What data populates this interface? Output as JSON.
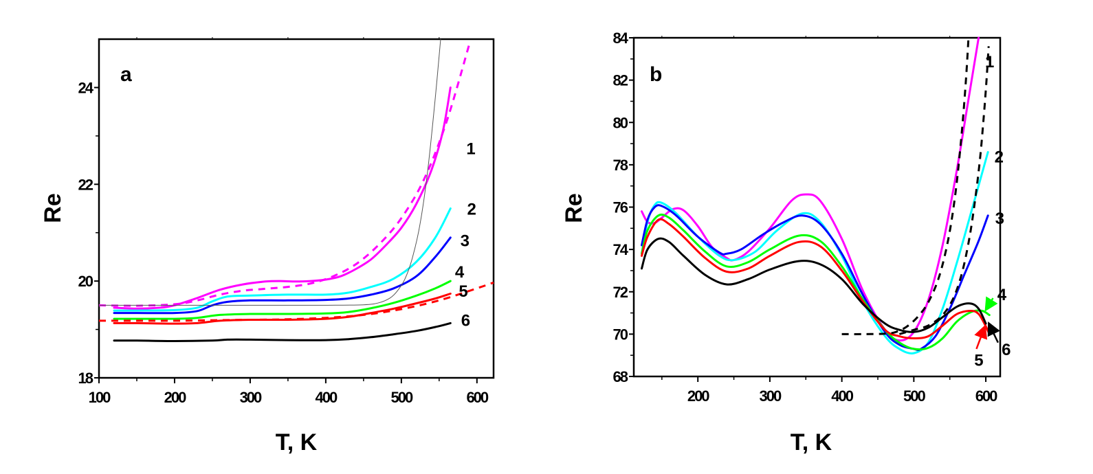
{
  "chart_data": [
    {
      "type": "line",
      "panel_label": "a",
      "xlabel": "T, K",
      "ylabel": "Re",
      "xlim": [
        100,
        622
      ],
      "ylim": [
        18,
        25
      ],
      "xticks": [
        100,
        200,
        300,
        400,
        500,
        600
      ],
      "xtick_labels": [
        "100",
        "200",
        "300",
        "400",
        "500",
        "600"
      ],
      "yticks": [
        18,
        20,
        22,
        24
      ],
      "ytick_labels": [
        "18",
        "20",
        "22",
        "24"
      ],
      "grid": false,
      "series": [
        {
          "name": "1",
          "color": "#ff00ff",
          "style": "solid",
          "x": [
            120,
            150,
            180,
            200,
            230,
            260,
            290,
            320,
            340,
            360,
            380,
            400,
            420,
            440,
            460,
            480,
            500,
            520,
            540,
            555,
            565
          ],
          "y": [
            19.45,
            19.43,
            19.45,
            19.5,
            19.65,
            19.82,
            19.93,
            19.99,
            20.0,
            19.99,
            20.0,
            20.03,
            20.1,
            20.25,
            20.45,
            20.75,
            21.1,
            21.6,
            22.3,
            23.1,
            24.0
          ]
        },
        {
          "name": "1-fit",
          "color": "#ff00ff",
          "style": "dashed",
          "x": [
            100,
            150,
            200,
            230,
            260,
            290,
            320,
            350,
            380,
            410,
            440,
            470,
            500,
            530,
            560,
            590
          ],
          "y": [
            19.5,
            19.49,
            19.52,
            19.6,
            19.72,
            19.8,
            19.84,
            19.88,
            19.95,
            20.1,
            20.35,
            20.75,
            21.3,
            22.1,
            23.3,
            24.9
          ]
        },
        {
          "name": "2",
          "color": "#00ffff",
          "style": "solid",
          "x": [
            120,
            150,
            200,
            230,
            250,
            270,
            300,
            350,
            400,
            430,
            460,
            490,
            520,
            545,
            565
          ],
          "y": [
            19.39,
            19.39,
            19.4,
            19.45,
            19.58,
            19.68,
            19.7,
            19.72,
            19.72,
            19.76,
            19.88,
            20.05,
            20.4,
            20.9,
            21.5
          ]
        },
        {
          "name": "3",
          "color": "#0000ff",
          "style": "solid",
          "x": [
            120,
            150,
            200,
            230,
            250,
            270,
            300,
            350,
            400,
            430,
            460,
            490,
            520,
            545,
            565
          ],
          "y": [
            19.34,
            19.34,
            19.34,
            19.38,
            19.5,
            19.57,
            19.6,
            19.6,
            19.61,
            19.64,
            19.72,
            19.85,
            20.1,
            20.5,
            20.9
          ]
        },
        {
          "name": "4",
          "color": "#00ff00",
          "style": "solid",
          "x": [
            120,
            150,
            200,
            230,
            260,
            300,
            350,
            400,
            430,
            460,
            490,
            520,
            545,
            565
          ],
          "y": [
            19.22,
            19.22,
            19.22,
            19.24,
            19.3,
            19.32,
            19.32,
            19.33,
            19.36,
            19.44,
            19.55,
            19.7,
            19.85,
            20.0
          ]
        },
        {
          "name": "5",
          "color": "#ff0000",
          "style": "solid",
          "x": [
            120,
            150,
            200,
            230,
            260,
            300,
            350,
            400,
            430,
            460,
            490,
            520,
            545,
            565
          ],
          "y": [
            19.13,
            19.13,
            19.12,
            19.13,
            19.18,
            19.2,
            19.2,
            19.22,
            19.26,
            19.34,
            19.43,
            19.54,
            19.64,
            19.74
          ]
        },
        {
          "name": "5-fit",
          "color": "#ff0000",
          "style": "dashed",
          "x": [
            100,
            150,
            200,
            250,
            300,
            350,
            400,
            450,
            500,
            550,
            600,
            622
          ],
          "y": [
            19.18,
            19.18,
            19.18,
            19.19,
            19.2,
            19.21,
            19.24,
            19.3,
            19.42,
            19.6,
            19.85,
            19.97
          ]
        },
        {
          "name": "6",
          "color": "#000000",
          "style": "solid",
          "x": [
            120,
            150,
            200,
            250,
            270,
            300,
            350,
            400,
            430,
            460,
            490,
            520,
            545,
            565
          ],
          "y": [
            18.77,
            18.77,
            18.76,
            18.77,
            18.79,
            18.79,
            18.78,
            18.78,
            18.8,
            18.84,
            18.9,
            18.97,
            19.05,
            19.13
          ]
        },
        {
          "name": "fit-thin",
          "color": "#555555",
          "style": "thin",
          "x": [
            100,
            200,
            300,
            400,
            450,
            470,
            485,
            495,
            505,
            515,
            525,
            535,
            545,
            552
          ],
          "y": [
            19.5,
            19.5,
            19.5,
            19.5,
            19.51,
            19.55,
            19.65,
            19.8,
            20.05,
            20.5,
            21.2,
            22.3,
            23.8,
            25.0
          ]
        }
      ],
      "curve_labels": [
        {
          "text": "1",
          "x": 586,
          "y": 22.75
        },
        {
          "text": "2",
          "x": 587,
          "y": 21.5
        },
        {
          "text": "3",
          "x": 578,
          "y": 20.85
        },
        {
          "text": "4",
          "x": 571,
          "y": 20.2
        },
        {
          "text": "5",
          "x": 576,
          "y": 19.8
        },
        {
          "text": "6",
          "x": 579,
          "y": 19.2
        }
      ]
    },
    {
      "type": "line",
      "panel_label": "b",
      "xlabel": "T, K",
      "ylabel": "Re",
      "xlim": [
        111,
        620
      ],
      "ylim": [
        68,
        84
      ],
      "xticks": [
        200,
        300,
        400,
        500,
        600
      ],
      "xtick_labels": [
        "200",
        "300",
        "400",
        "500",
        "600"
      ],
      "yticks": [
        68,
        70,
        72,
        74,
        76,
        78,
        80,
        82,
        84
      ],
      "ytick_labels": [
        "68",
        "70",
        "72",
        "74",
        "76",
        "78",
        "80",
        "82",
        "84"
      ],
      "grid": false,
      "series": [
        {
          "name": "1",
          "color": "#ff00ff",
          "style": "solid",
          "x": [
            122,
            130,
            140,
            150,
            165,
            180,
            200,
            220,
            240,
            250,
            270,
            300,
            330,
            350,
            370,
            400,
            430,
            460,
            480,
            500,
            520,
            540,
            560,
            575,
            590
          ],
          "y": [
            75.8,
            75.3,
            75.25,
            75.5,
            75.9,
            75.85,
            75.1,
            74.1,
            73.6,
            73.5,
            73.9,
            75.0,
            76.3,
            76.6,
            76.3,
            74.5,
            72.0,
            70.2,
            69.7,
            70.1,
            71.6,
            74.2,
            77.8,
            80.9,
            84.0
          ]
        },
        {
          "name": "2",
          "color": "#00ffff",
          "style": "solid",
          "x": [
            122,
            130,
            140,
            150,
            170,
            200,
            230,
            250,
            280,
            310,
            345,
            370,
            400,
            430,
            460,
            480,
            500,
            520,
            540,
            560,
            580,
            603
          ],
          "y": [
            73.8,
            75.3,
            76.1,
            76.2,
            75.7,
            74.6,
            73.7,
            73.5,
            73.9,
            74.9,
            75.7,
            75.3,
            73.7,
            71.5,
            69.9,
            69.3,
            69.1,
            69.6,
            71.2,
            73.4,
            75.8,
            78.6
          ]
        },
        {
          "name": "3",
          "color": "#0000ff",
          "style": "solid",
          "x": [
            122,
            130,
            140,
            150,
            170,
            200,
            230,
            240,
            260,
            290,
            320,
            345,
            370,
            400,
            430,
            460,
            480,
            500,
            510,
            530,
            550,
            570,
            590,
            603
          ],
          "y": [
            74.2,
            75.4,
            76.0,
            76.05,
            75.6,
            74.6,
            73.85,
            73.8,
            74.0,
            74.7,
            75.3,
            75.6,
            75.2,
            73.8,
            71.8,
            70.1,
            69.5,
            69.3,
            69.3,
            69.9,
            71.2,
            72.8,
            74.4,
            75.6
          ]
        },
        {
          "name": "4",
          "color": "#00ff00",
          "style": "solid",
          "x": [
            122,
            130,
            145,
            160,
            180,
            210,
            240,
            270,
            300,
            340,
            370,
            400,
            430,
            460,
            480,
            500,
            520,
            540,
            560,
            580,
            595,
            605
          ],
          "y": [
            73.8,
            74.9,
            75.6,
            75.5,
            74.9,
            73.9,
            73.2,
            73.4,
            74.0,
            74.65,
            74.4,
            73.2,
            71.6,
            70.2,
            69.6,
            69.3,
            69.35,
            69.8,
            70.6,
            71.05,
            71.1,
            70.9
          ]
        },
        {
          "name": "5",
          "color": "#ff0000",
          "style": "solid",
          "x": [
            122,
            130,
            145,
            160,
            180,
            210,
            240,
            270,
            300,
            340,
            370,
            400,
            430,
            460,
            480,
            500,
            520,
            540,
            560,
            580,
            590,
            598,
            605
          ],
          "y": [
            73.7,
            74.6,
            75.4,
            75.2,
            74.6,
            73.6,
            72.95,
            73.1,
            73.7,
            74.35,
            74.15,
            73.0,
            71.5,
            70.2,
            69.9,
            69.8,
            69.9,
            70.4,
            70.95,
            71.1,
            70.95,
            70.5,
            70.0
          ]
        },
        {
          "name": "6",
          "color": "#000000",
          "style": "solid",
          "x": [
            122,
            130,
            145,
            160,
            180,
            210,
            240,
            270,
            300,
            340,
            370,
            400,
            430,
            460,
            480,
            500,
            520,
            540,
            560,
            578,
            590,
            600
          ],
          "y": [
            73.1,
            74.0,
            74.5,
            74.35,
            73.7,
            72.8,
            72.35,
            72.6,
            73.05,
            73.45,
            73.3,
            72.6,
            71.4,
            70.5,
            70.2,
            70.1,
            70.3,
            70.8,
            71.3,
            71.45,
            71.2,
            70.5
          ]
        },
        {
          "name": "fit-1",
          "color": "#000000",
          "style": "dashed",
          "x": [
            400,
            430,
            460,
            475,
            490,
            505,
            520,
            535,
            548,
            558,
            566,
            572,
            576
          ],
          "y": [
            70.0,
            70.0,
            70.02,
            70.1,
            70.35,
            70.8,
            71.5,
            72.7,
            74.5,
            76.7,
            79.3,
            81.8,
            84.0
          ]
        },
        {
          "name": "fit-2",
          "color": "#000000",
          "style": "dashed",
          "x": [
            480,
            500,
            520,
            540,
            555,
            567,
            577,
            585,
            592,
            597,
            601,
            604
          ],
          "y": [
            70.0,
            70.2,
            70.4,
            70.9,
            71.7,
            72.9,
            74.5,
            76.3,
            78.3,
            80.2,
            82.0,
            83.6
          ]
        }
      ],
      "curve_labels": [
        {
          "text": "1",
          "x": 599,
          "y": 82.9
        },
        {
          "text": "2",
          "x": 612,
          "y": 78.4
        },
        {
          "text": "3",
          "x": 613,
          "y": 75.5
        },
        {
          "text": "4",
          "x": 616,
          "y": 71.9
        },
        {
          "text": "5",
          "x": 584,
          "y": 68.8
        },
        {
          "text": "6",
          "x": 622,
          "y": 69.3
        }
      ],
      "arrows": [
        {
          "label": "4",
          "color": "#00ff00",
          "from": [
            610,
            71.7
          ],
          "to": [
            601,
            71.2
          ]
        },
        {
          "label": "5",
          "color": "#ff0000",
          "from": [
            587,
            69.3
          ],
          "to": [
            598,
            70.3
          ]
        },
        {
          "label": "6",
          "color": "#000000",
          "from": [
            617,
            69.6
          ],
          "to": [
            605,
            70.45
          ]
        }
      ]
    }
  ]
}
